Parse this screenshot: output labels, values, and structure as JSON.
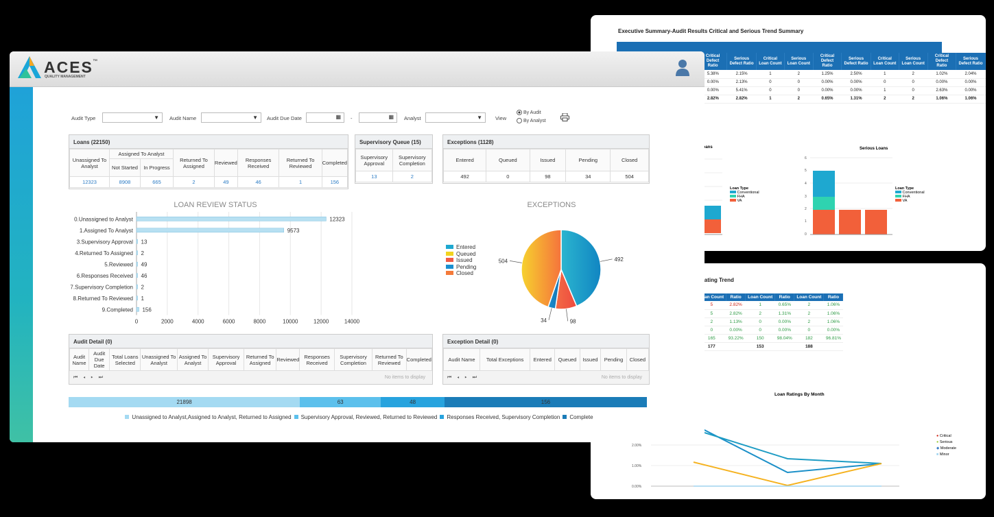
{
  "exec_report": {
    "title": "Executive Summary-Audit Results Critical and Serious Trend Summary",
    "headers": [
      "Critical Defect Ratio",
      "Serious Defect Ratio",
      "Critical Loan Count",
      "Serious Loan Count",
      "Critical Defect Ratio",
      "Serious Defect Ratio",
      "Critical Loan Count",
      "Serious Loan Count",
      "Critical Defect Ratio",
      "Serious Defect Ratio"
    ],
    "rows": [
      [
        "5.38%",
        "2.15%",
        "1",
        "2",
        "1.25%",
        "2.50%",
        "1",
        "2",
        "1.02%",
        "2.04%"
      ],
      [
        "0.00%",
        "2.13%",
        "0",
        "0",
        "0.00%",
        "0.00%",
        "0",
        "0",
        "0.00%",
        "0.00%"
      ],
      [
        "0.00%",
        "5.41%",
        "0",
        "0",
        "0.00%",
        "0.00%",
        "1",
        "0",
        "2.63%",
        "0.00%"
      ],
      [
        "2.82%",
        "2.82%",
        "1",
        "2",
        "0.65%",
        "1.31%",
        "2",
        "2",
        "1.06%",
        "1.06%"
      ]
    ],
    "loans_chart_title": "Loans",
    "serious_chart_title": "Serious Loans",
    "legend_title": "Loan Type",
    "legend": [
      "Conventional",
      "FHA",
      "VA"
    ],
    "serious_axis": [
      "6",
      "5",
      "4",
      "3",
      "2",
      "1",
      "0"
    ],
    "colors": {
      "conventional": "#1ea8d0",
      "fha": "#2fd3b0",
      "va": "#f2603a"
    }
  },
  "rating_report": {
    "title": "Rating Trend",
    "headers": [
      "Loan Count",
      "Ratio",
      "Loan Count",
      "Ratio",
      "Loan Count",
      "Ratio"
    ],
    "rows": [
      [
        "5",
        "2.82%",
        "1",
        "0.65%",
        "2",
        "1.06%"
      ],
      [
        "5",
        "2.82%",
        "2",
        "1.31%",
        "2",
        "1.06%"
      ],
      [
        "2",
        "1.13%",
        "0",
        "0.00%",
        "2",
        "1.06%"
      ],
      [
        "0",
        "0.00%",
        "0",
        "0.00%",
        "0",
        "0.00%"
      ],
      [
        "165",
        "93.22%",
        "150",
        "98.04%",
        "182",
        "96.81%"
      ],
      [
        "177",
        "",
        "153",
        "",
        "188",
        ""
      ]
    ],
    "chart_title": "Loan Ratings By Month",
    "y_ticks": [
      "2.00%",
      "1.00%",
      "0.00%"
    ],
    "legend": [
      "Critical",
      "Serious",
      "Moderate",
      "Minor"
    ]
  },
  "app": {
    "logo_text": "ACES",
    "logo_tm": "™",
    "logo_sub": "QUALITY MANAGEMENT"
  },
  "filters": {
    "audit_type": "Audit Type",
    "audit_name": "Audit Name",
    "audit_due_date": "Audit Due Date",
    "date_sep": "-",
    "analyst": "Analyst",
    "view": "View",
    "by_audit": "By Audit",
    "by_analyst": "By Analyst"
  },
  "loans": {
    "title": "Loans (22150)",
    "h_unassigned": "Unassigned To Analyst",
    "h_assigned": "Assigned To Analyst",
    "h_not_started": "Not Started",
    "h_in_progress": "In Progress",
    "h_returned_assigned": "Returned To Assigned",
    "h_reviewed": "Reviewed",
    "h_responses": "Responses Received",
    "h_returned_reviewed": "Returned To Reviewed",
    "h_completed": "Completed",
    "values": [
      "12323",
      "8908",
      "665",
      "2",
      "49",
      "46",
      "1",
      "156"
    ]
  },
  "supervisory": {
    "title": "Supervisory Queue (15)",
    "h_approval": "Supervisory Approval",
    "h_completion": "Supervisory Completion",
    "values": [
      "13",
      "2"
    ]
  },
  "exceptions": {
    "title": "Exceptions (1128)",
    "headers": [
      "Entered",
      "Queued",
      "Issued",
      "Pending",
      "Closed"
    ],
    "values": [
      "492",
      "0",
      "98",
      "34",
      "504"
    ]
  },
  "chart_data": [
    {
      "type": "bar",
      "title": "LOAN REVIEW STATUS",
      "categories": [
        "0.Unassigned to Analyst",
        "1.Assigned To Analyst",
        "3.Supervisory Approval",
        "4.Returned To Assigned",
        "5.Reviewed",
        "6.Responses Received",
        "7.Supervisory Completion",
        "8.Returned To Reviewed",
        "9.Completed"
      ],
      "values": [
        12323,
        9573,
        13,
        2,
        49,
        46,
        2,
        1,
        156
      ],
      "xlim": [
        0,
        14000
      ],
      "x_ticks": [
        "0",
        "2000",
        "4000",
        "6000",
        "8000",
        "10000",
        "12000",
        "14000"
      ],
      "color": "#b7e0f2"
    },
    {
      "type": "pie",
      "title": "EXCEPTIONS",
      "categories": [
        "Entered",
        "Queued",
        "Issued",
        "Pending",
        "Closed"
      ],
      "values": [
        492,
        0,
        98,
        34,
        504
      ],
      "colors": [
        "#1ea8d0",
        "#f2d31f",
        "#f25a45",
        "#1a8fd0",
        "#f47a3a"
      ]
    },
    {
      "type": "bar",
      "title": "",
      "orientation": "stacked-horizontal",
      "values": [
        21898,
        63,
        48,
        156
      ],
      "series": [
        {
          "name": "Unassigned to Analyst,Assigned to Analyst, Returned to Assigned",
          "color": "#a4daf2"
        },
        {
          "name": "Supervisory Approval, Reviewed, Returned to Reviewed",
          "color": "#5cc0ec"
        },
        {
          "name": "Responses Received, Supervisory Completion",
          "color": "#27a3de"
        },
        {
          "name": "Complete",
          "color": "#1b7cb8"
        }
      ]
    }
  ],
  "audit_detail": {
    "title": "Audit Detail (0)",
    "headers": [
      "Audit Name",
      "Audit Due Date",
      "Total Loans Selected",
      "Unassigned To Analyst",
      "Assigned To Analyst",
      "Supervisory Approval",
      "Returned To Assigned",
      "Reviewed",
      "Responses Received",
      "Supervisory Completion",
      "Returned To Reviewed",
      "Completed"
    ],
    "empty": "No items to display"
  },
  "exception_detail": {
    "title": "Exception Detail (0)",
    "headers": [
      "Audit Name",
      "Total Exceptions",
      "Entered",
      "Queued",
      "Issued",
      "Pending",
      "Closed"
    ],
    "empty": "No items to display"
  }
}
